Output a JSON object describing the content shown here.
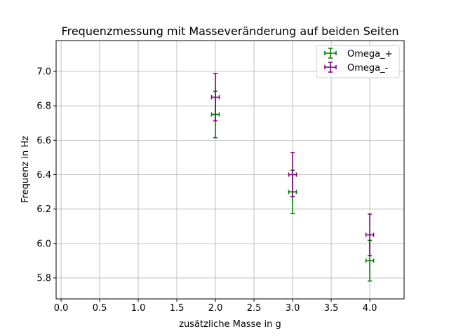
{
  "chart_data": {
    "type": "scatter",
    "title": "Frequenzmessung mit Masseveränderung auf beiden Seiten",
    "xlabel": "zusätzliche Masse in g",
    "ylabel": "Frequenz in Hz",
    "xlim": [
      -0.064,
      4.445
    ],
    "ylim": [
      5.678,
      7.179
    ],
    "xticks": [
      0.0,
      0.5,
      1.0,
      1.5,
      2.0,
      2.5,
      3.0,
      3.5,
      4.0
    ],
    "xtick_labels": [
      "0.0",
      "0.5",
      "1.0",
      "1.5",
      "2.0",
      "2.5",
      "3.0",
      "3.5",
      "4.0"
    ],
    "yticks": [
      5.8,
      6.0,
      6.2,
      6.4,
      6.6,
      6.8,
      7.0
    ],
    "ytick_labels": [
      "5.8",
      "6.0",
      "6.2",
      "6.4",
      "6.6",
      "6.8",
      "7.0"
    ],
    "grid": true,
    "legend_position": "top-right",
    "series": [
      {
        "name": "Omega_+",
        "color": "#008000",
        "x": [
          2,
          3,
          4
        ],
        "y": [
          6.75,
          6.3,
          5.9
        ],
        "xerr": [
          0.05,
          0.05,
          0.05
        ],
        "yerr": [
          0.135,
          0.126,
          0.118
        ]
      },
      {
        "name": "Omega_-",
        "color": "#800080",
        "x": [
          2,
          3,
          4
        ],
        "y": [
          6.85,
          6.4,
          6.05
        ],
        "xerr": [
          0.05,
          0.05,
          0.05
        ],
        "yerr": [
          0.137,
          0.128,
          0.121
        ]
      }
    ]
  }
}
